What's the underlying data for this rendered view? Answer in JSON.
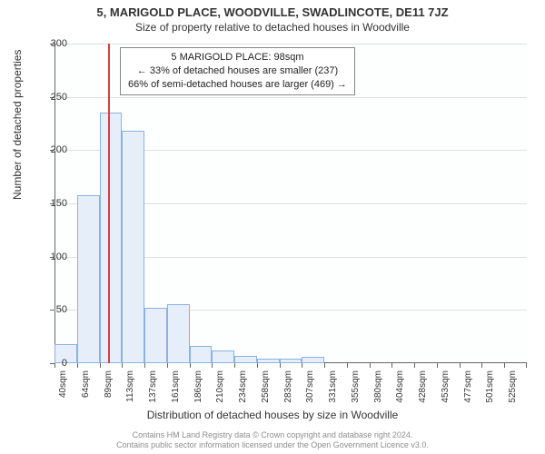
{
  "title": "5, MARIGOLD PLACE, WOODVILLE, SWADLINCOTE, DE11 7JZ",
  "subtitle": "Size of property relative to detached houses in Woodville",
  "y_axis": {
    "label": "Number of detached properties",
    "min": 0,
    "max": 300,
    "ticks": [
      0,
      50,
      100,
      150,
      200,
      250,
      300
    ]
  },
  "x_axis": {
    "label": "Distribution of detached houses by size in Woodville",
    "categories": [
      "40sqm",
      "64sqm",
      "89sqm",
      "113sqm",
      "137sqm",
      "161sqm",
      "186sqm",
      "210sqm",
      "234sqm",
      "258sqm",
      "283sqm",
      "307sqm",
      "331sqm",
      "355sqm",
      "380sqm",
      "404sqm",
      "428sqm",
      "453sqm",
      "477sqm",
      "501sqm",
      "525sqm"
    ]
  },
  "histogram": {
    "type": "histogram",
    "bar_color": "#e5eef9",
    "bar_border": "#8bb3e0",
    "values": [
      18,
      158,
      235,
      218,
      52,
      55,
      16,
      12,
      7,
      4,
      4,
      6,
      0,
      0,
      0,
      0,
      0,
      0,
      0,
      0,
      0
    ]
  },
  "marker": {
    "color": "#d93c3c",
    "position_sqm": 98
  },
  "callout": {
    "line1": "5 MARIGOLD PLACE: 98sqm",
    "line2": "← 33% of detached houses are smaller (237)",
    "line3": "66% of semi-detached houses are larger (469) →"
  },
  "footer": {
    "line1": "Contains HM Land Registry data © Crown copyright and database right 2024.",
    "line2": "Contains public sector information licensed under the Open Government Licence v3.0."
  },
  "style": {
    "background": "#ffffff",
    "grid_color": "#e0e0e0",
    "text_color": "#333333",
    "footer_color": "#8d8d8d",
    "title_fontsize": 13,
    "label_fontsize": 12,
    "tick_fontsize": 11
  }
}
